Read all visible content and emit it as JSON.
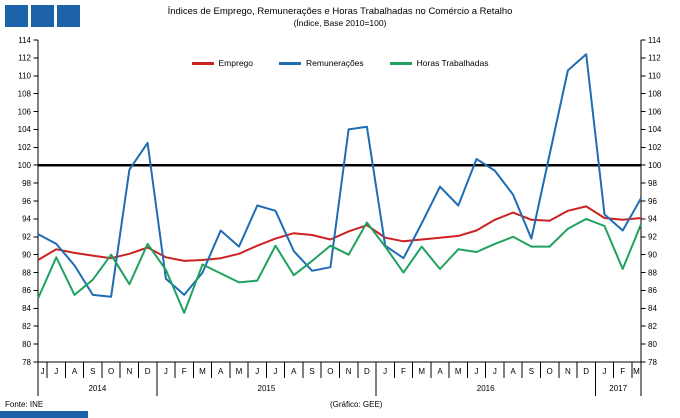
{
  "header": {
    "logo_square_count": 3
  },
  "footer": {
    "source": "Fonte: INE",
    "credit": "(Gráfico: GEE)"
  },
  "colors": {
    "logo_blue": "#1b62a8",
    "emprego_red": "#cc2222",
    "remuneracoes_blue": "#1f6cb4",
    "horas_green": "#21a15f",
    "baseline_black": "#000000"
  },
  "chart_data": {
    "type": "line",
    "title": "Índices de Emprego, Remunerações e Horas Trabalhadas no Comércio a Retalho",
    "subtitle": "(Índice, Base 2010=100)",
    "ylabel": "",
    "xlabel": "",
    "ylim": [
      78,
      114
    ],
    "ytick_step": 2,
    "baseline_value": 100,
    "grid": "off",
    "legend_position": "top",
    "categories": [
      "J",
      "J",
      "A",
      "S",
      "O",
      "N",
      "D",
      "J",
      "F",
      "M",
      "A",
      "M",
      "J",
      "J",
      "A",
      "S",
      "O",
      "N",
      "D",
      "J",
      "F",
      "M",
      "A",
      "M",
      "J",
      "J",
      "A",
      "S",
      "O",
      "N",
      "D",
      "J",
      "F",
      "M"
    ],
    "year_groups": [
      {
        "label": "2014",
        "count": 7
      },
      {
        "label": "2015",
        "count": 12
      },
      {
        "label": "2016",
        "count": 12
      },
      {
        "label": "2017",
        "count": 3
      }
    ],
    "series": [
      {
        "name": "Emprego",
        "color": "#cc2222",
        "values": [
          89.4,
          90.6,
          90.2,
          89.9,
          89.6,
          90.1,
          90.8,
          89.7,
          89.3,
          89.4,
          89.6,
          90.1,
          91.0,
          91.8,
          92.4,
          92.2,
          91.7,
          92.6,
          93.3,
          91.9,
          91.5,
          91.7,
          91.9,
          92.1,
          92.7,
          93.9,
          94.7,
          93.9,
          93.8,
          94.9,
          95.4,
          94.1,
          93.9,
          94.1
        ]
      },
      {
        "name": "Remunerações",
        "color": "#1f6cb4",
        "values": [
          92.3,
          91.2,
          88.8,
          85.5,
          85.3,
          99.5,
          102.5,
          87.3,
          85.5,
          88.0,
          92.7,
          90.9,
          95.5,
          94.9,
          90.4,
          88.2,
          88.6,
          104.0,
          104.3,
          91.0,
          89.6,
          93.5,
          97.6,
          95.5,
          100.7,
          99.4,
          96.7,
          91.8,
          101.2,
          110.6,
          112.4,
          94.5,
          92.7,
          96.3
        ]
      },
      {
        "name": "Horas Trabalhadas",
        "color": "#21a15f",
        "values": [
          85.1,
          89.7,
          85.5,
          87.2,
          90.0,
          86.7,
          91.2,
          88.3,
          83.5,
          88.9,
          87.9,
          86.9,
          87.1,
          91.0,
          87.7,
          89.3,
          91.0,
          90.0,
          93.6,
          90.9,
          88.0,
          90.9,
          88.4,
          90.6,
          90.3,
          91.2,
          92.0,
          90.9,
          90.9,
          92.9,
          94.0,
          93.2,
          88.4,
          93.4
        ]
      }
    ]
  }
}
